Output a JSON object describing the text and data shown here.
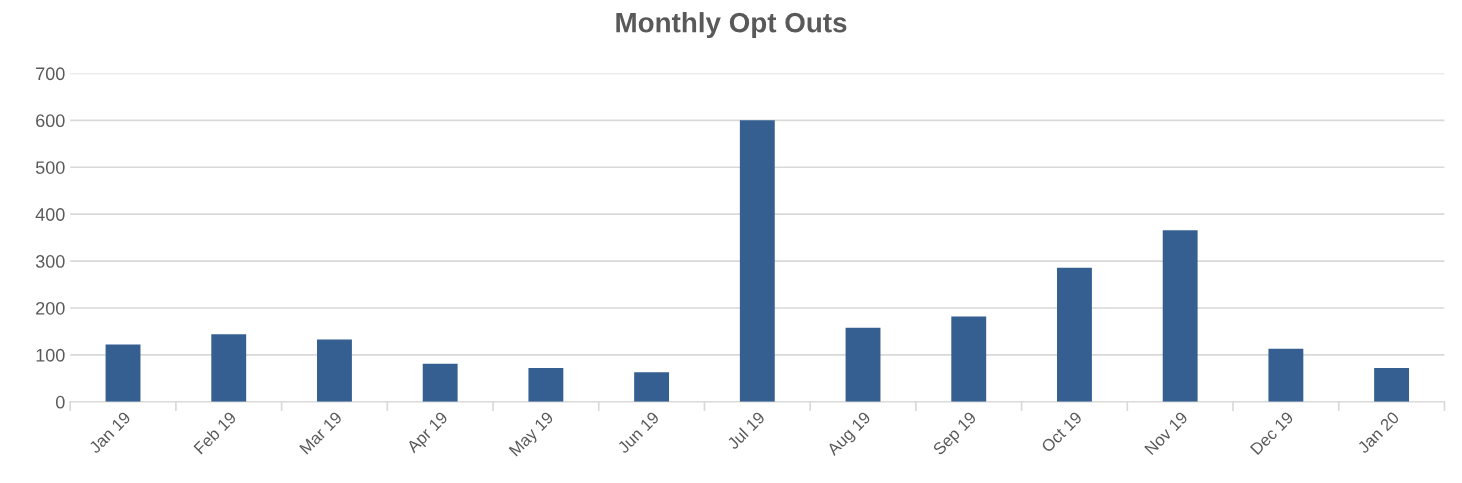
{
  "chart_data": {
    "type": "bar",
    "title": "Monthly Opt Outs",
    "categories": [
      "Jan 19",
      "Feb 19",
      "Mar 19",
      "Apr 19",
      "May 19",
      "Jun 19",
      "Jul 19",
      "Aug 19",
      "Sep 19",
      "Oct 19",
      "Nov 19",
      "Dec 19",
      "Jan 20"
    ],
    "values": [
      122,
      144,
      133,
      81,
      72,
      63,
      600,
      158,
      182,
      286,
      366,
      113,
      72
    ],
    "color": "#355f91",
    "ylim": [
      0,
      700
    ],
    "yticks": [
      0,
      100,
      200,
      300,
      400,
      500,
      600,
      700
    ],
    "grid": "y",
    "legend": false
  }
}
